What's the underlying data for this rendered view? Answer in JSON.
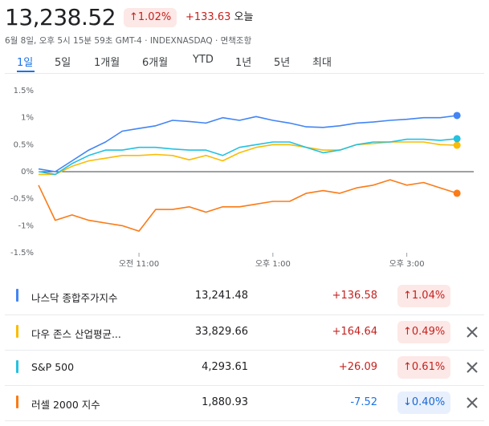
{
  "header": {
    "price": "13,238.52",
    "pct": "↑1.02%",
    "change": "+133.63",
    "today": "오늘",
    "subtitle": "6월 8일, 오후 5시 15분 59초 GMT-4 · INDEXNASDAQ · 면책조항"
  },
  "tabs": [
    "1일",
    "5일",
    "1개월",
    "6개월",
    "YTD",
    "1년",
    "5년",
    "최대"
  ],
  "colors": {
    "nasdaq": "#4285f4",
    "dow": "#fbbc04",
    "sp": "#24c1e0",
    "russell": "#fa7b17"
  },
  "chart_data": {
    "type": "line",
    "ylim": [
      -1.5,
      1.5
    ],
    "yticks": [
      "1.5%",
      "1%",
      "0.5%",
      "0%",
      "-0.5%",
      "-1%",
      "-1.5%"
    ],
    "xticks": [
      "오전 11:00",
      "오후 1:00",
      "오후 3:00"
    ],
    "x": [
      9.5,
      9.75,
      10.0,
      10.25,
      10.5,
      10.75,
      11.0,
      11.25,
      11.5,
      11.75,
      12.0,
      12.25,
      12.5,
      12.75,
      13.0,
      13.25,
      13.5,
      13.75,
      14.0,
      14.25,
      14.5,
      14.75,
      15.0,
      15.25,
      15.5,
      15.75
    ],
    "series": [
      {
        "name": "나스닥 종합주가지수",
        "color": "#4285f4",
        "values": [
          0.05,
          0.0,
          0.2,
          0.4,
          0.55,
          0.75,
          0.8,
          0.85,
          0.95,
          0.93,
          0.9,
          1.0,
          0.95,
          1.02,
          0.95,
          0.9,
          0.83,
          0.82,
          0.85,
          0.9,
          0.92,
          0.95,
          0.97,
          1.0,
          1.0,
          1.04
        ]
      },
      {
        "name": "다우 존스 산업평균지수",
        "color": "#fbbc04",
        "values": [
          -0.05,
          -0.05,
          0.1,
          0.2,
          0.25,
          0.3,
          0.3,
          0.32,
          0.3,
          0.22,
          0.3,
          0.2,
          0.35,
          0.45,
          0.5,
          0.5,
          0.45,
          0.4,
          0.4,
          0.5,
          0.52,
          0.55,
          0.55,
          0.55,
          0.5,
          0.49
        ]
      },
      {
        "name": "S&P 500",
        "color": "#24c1e0",
        "values": [
          0.0,
          -0.05,
          0.15,
          0.3,
          0.4,
          0.4,
          0.45,
          0.45,
          0.42,
          0.4,
          0.4,
          0.3,
          0.45,
          0.5,
          0.55,
          0.55,
          0.45,
          0.35,
          0.4,
          0.5,
          0.55,
          0.55,
          0.6,
          0.6,
          0.58,
          0.61
        ]
      },
      {
        "name": "러셀 2000 지수",
        "color": "#fa7b17",
        "values": [
          -0.25,
          -0.9,
          -0.8,
          -0.9,
          -0.95,
          -1.0,
          -1.1,
          -0.7,
          -0.7,
          -0.65,
          -0.75,
          -0.65,
          -0.65,
          -0.6,
          -0.55,
          -0.55,
          -0.4,
          -0.35,
          -0.4,
          -0.3,
          -0.25,
          -0.15,
          -0.25,
          -0.2,
          -0.3,
          -0.4
        ]
      }
    ]
  },
  "rows": [
    {
      "name": "나스닥 종합주가지수",
      "value": "13,241.48",
      "change": "+136.58",
      "pct": "↑1.04%"
    },
    {
      "name": "다우 존스 산업평균...",
      "value": "33,829.66",
      "change": "+164.64",
      "pct": "↑0.49%"
    },
    {
      "name": "S&P 500",
      "value": "4,293.61",
      "change": "+26.09",
      "pct": "↑0.61%"
    },
    {
      "name": "러셀 2000 지수",
      "value": "1,880.93",
      "change": "-7.52",
      "pct": "↓0.40%"
    }
  ]
}
